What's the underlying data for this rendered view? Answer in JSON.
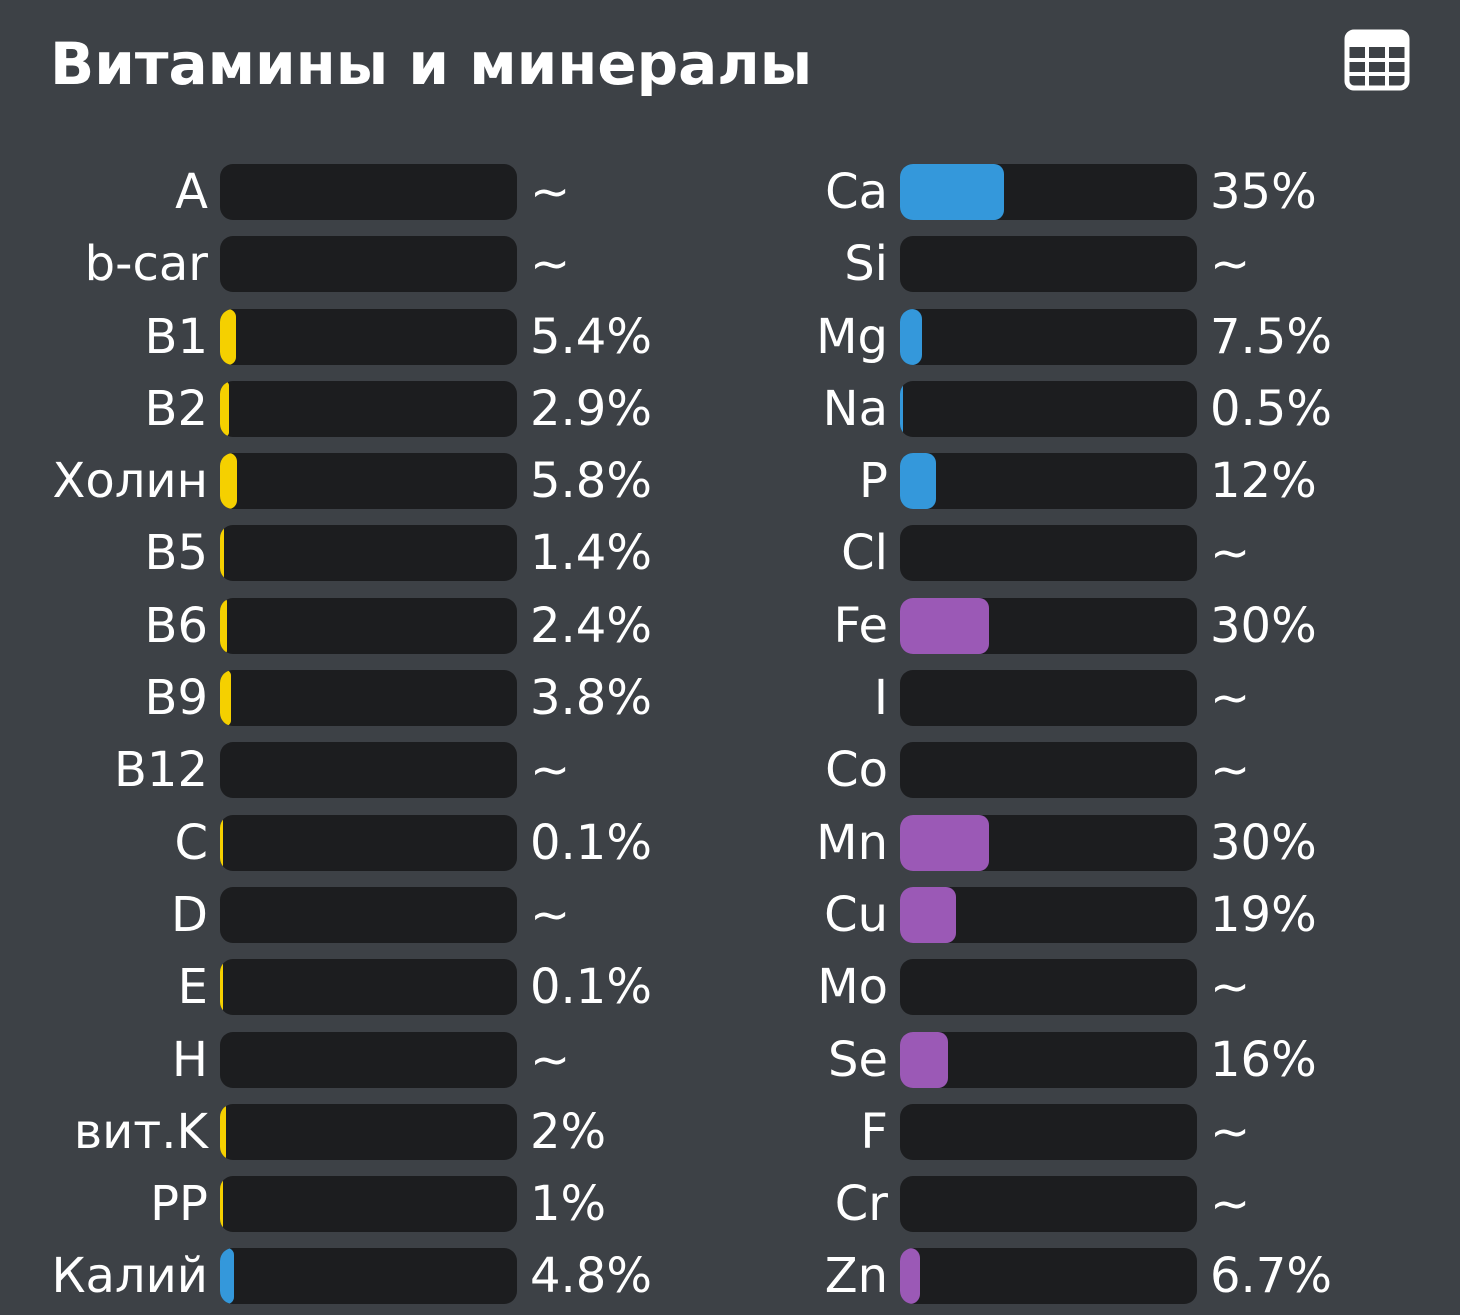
{
  "header": {
    "title": "Витамины и минералы",
    "table_icon": "table-icon"
  },
  "colors": {
    "background": "#3d4146",
    "track": "#1c1d1f",
    "vitamin": "#f5d000",
    "mineral_blue": "#3498db",
    "mineral_purple": "#9b59b6"
  },
  "vitamins": [
    {
      "label": "A",
      "value": "~",
      "pct": 0,
      "color": "yellow"
    },
    {
      "label": "b-car",
      "value": "~",
      "pct": 0,
      "color": "yellow"
    },
    {
      "label": "B1",
      "value": "5.4%",
      "pct": 5.4,
      "color": "yellow"
    },
    {
      "label": "B2",
      "value": "2.9%",
      "pct": 2.9,
      "color": "yellow"
    },
    {
      "label": "Холин",
      "value": "5.8%",
      "pct": 5.8,
      "color": "yellow"
    },
    {
      "label": "B5",
      "value": "1.4%",
      "pct": 1.4,
      "color": "yellow"
    },
    {
      "label": "B6",
      "value": "2.4%",
      "pct": 2.4,
      "color": "yellow"
    },
    {
      "label": "B9",
      "value": "3.8%",
      "pct": 3.8,
      "color": "yellow"
    },
    {
      "label": "B12",
      "value": "~",
      "pct": 0,
      "color": "yellow"
    },
    {
      "label": "C",
      "value": "0.1%",
      "pct": 0.1,
      "color": "yellow"
    },
    {
      "label": "D",
      "value": "~",
      "pct": 0,
      "color": "yellow"
    },
    {
      "label": "E",
      "value": "0.1%",
      "pct": 0.1,
      "color": "yellow"
    },
    {
      "label": "H",
      "value": "~",
      "pct": 0,
      "color": "yellow"
    },
    {
      "label": "вит.K",
      "value": "2%",
      "pct": 2,
      "color": "yellow"
    },
    {
      "label": "PP",
      "value": "1%",
      "pct": 1,
      "color": "yellow"
    },
    {
      "label": "Калий",
      "value": "4.8%",
      "pct": 4.8,
      "color": "blue"
    }
  ],
  "minerals": [
    {
      "label": "Ca",
      "value": "35%",
      "pct": 35,
      "color": "blue"
    },
    {
      "label": "Si",
      "value": "~",
      "pct": 0,
      "color": "blue"
    },
    {
      "label": "Mg",
      "value": "7.5%",
      "pct": 7.5,
      "color": "blue"
    },
    {
      "label": "Na",
      "value": "0.5%",
      "pct": 0.5,
      "color": "blue"
    },
    {
      "label": "P",
      "value": "12%",
      "pct": 12,
      "color": "blue"
    },
    {
      "label": "Cl",
      "value": "~",
      "pct": 0,
      "color": "blue"
    },
    {
      "label": "Fe",
      "value": "30%",
      "pct": 30,
      "color": "purple"
    },
    {
      "label": "I",
      "value": "~",
      "pct": 0,
      "color": "purple"
    },
    {
      "label": "Co",
      "value": "~",
      "pct": 0,
      "color": "purple"
    },
    {
      "label": "Mn",
      "value": "30%",
      "pct": 30,
      "color": "purple"
    },
    {
      "label": "Cu",
      "value": "19%",
      "pct": 19,
      "color": "purple"
    },
    {
      "label": "Mo",
      "value": "~",
      "pct": 0,
      "color": "purple"
    },
    {
      "label": "Se",
      "value": "16%",
      "pct": 16,
      "color": "purple"
    },
    {
      "label": "F",
      "value": "~",
      "pct": 0,
      "color": "purple"
    },
    {
      "label": "Cr",
      "value": "~",
      "pct": 0,
      "color": "purple"
    },
    {
      "label": "Zn",
      "value": "6.7%",
      "pct": 6.7,
      "color": "purple"
    }
  ]
}
